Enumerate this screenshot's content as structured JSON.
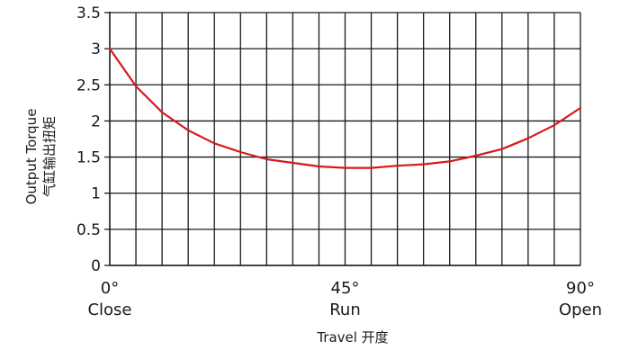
{
  "chart_data": {
    "type": "line",
    "xlabel": "Travel 开度",
    "ylabel_lines": [
      "Output Torque",
      "气缸输出扭矩"
    ],
    "xlim": [
      0,
      90
    ],
    "ylim": [
      0,
      3.5
    ],
    "grid": true,
    "y_ticks": [
      "0",
      "0.5",
      "1",
      "1.5",
      "2",
      "2.5",
      "3",
      "3.5"
    ],
    "x_labels": [
      {
        "x": 0,
        "degree": "0°",
        "name": "Close"
      },
      {
        "x": 45,
        "degree": "45°",
        "name": "Run"
      },
      {
        "x": 90,
        "degree": "90°",
        "name": "Open"
      }
    ],
    "colors": {
      "line": "#d7191c",
      "grid": "#1a1a1a",
      "axis": "#1a1a1a"
    },
    "series": [
      {
        "x": [
          0,
          5,
          10,
          15,
          20,
          25,
          30,
          35,
          40,
          45,
          50,
          55,
          60,
          65,
          70,
          75,
          80,
          85,
          90
        ],
        "values": [
          3.0,
          2.48,
          2.12,
          1.87,
          1.69,
          1.57,
          1.47,
          1.42,
          1.37,
          1.35,
          1.35,
          1.38,
          1.4,
          1.44,
          1.52,
          1.61,
          1.76,
          1.94,
          2.18
        ]
      }
    ]
  }
}
